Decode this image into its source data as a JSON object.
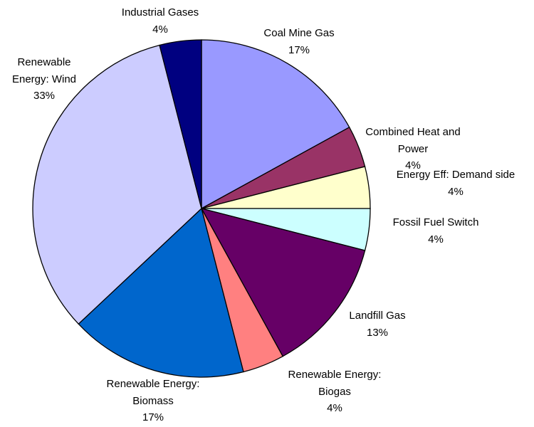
{
  "chart_data": {
    "type": "pie",
    "categories": [
      "Coal Mine Gas",
      "Combined Heat and Power",
      "Energy Eff: Demand side",
      "Fossil Fuel Switch",
      "Landfill Gas",
      "Renewable Energy: Biogas",
      "Renewable Energy: Biomass",
      "Renewable Energy: Wind",
      "Industrial Gases"
    ],
    "values": [
      17,
      4,
      4,
      4,
      13,
      4,
      17,
      33,
      4
    ],
    "value_labels": [
      "17%",
      "4%",
      "4%",
      "4%",
      "13%",
      "4%",
      "17%",
      "33%",
      "4%"
    ],
    "colors": [
      "#9999ff",
      "#993366",
      "#ffffcc",
      "#ccffff",
      "#660066",
      "#ff8080",
      "#0066cc",
      "#ccccff",
      "#000080"
    ]
  }
}
